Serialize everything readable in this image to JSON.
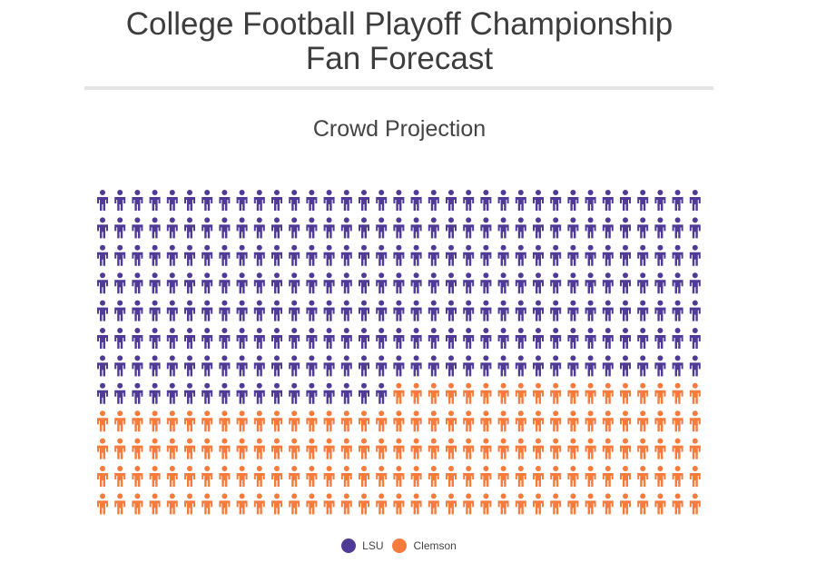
{
  "title_line1": "College Football Playoff Championship",
  "title_line2": "Fan Forecast",
  "chart_data": {
    "type": "pictogram",
    "subtitle": "Crowd Projection",
    "total": 420,
    "rows": 12,
    "columns": 35,
    "series": [
      {
        "name": "LSU",
        "value": 262,
        "color": "#4f3a95"
      },
      {
        "name": "Clemson",
        "value": 158,
        "color": "#f67b3c"
      }
    ],
    "icon": "person-icon",
    "legend_position": "bottom-center"
  }
}
